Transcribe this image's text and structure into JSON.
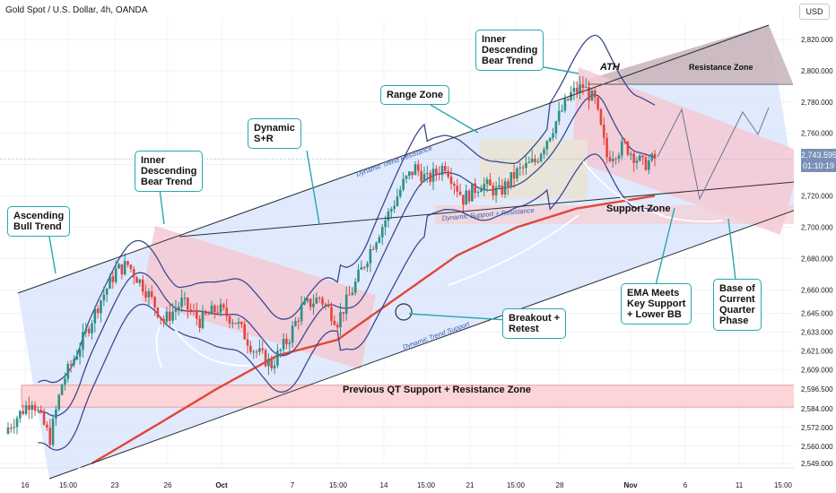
{
  "header": {
    "title": "Gold Spot / U.S. Dollar, 4h, OANDA",
    "currency": "USD"
  },
  "price_tag": {
    "value": "2,743.595",
    "countdown": "01:10:19"
  },
  "colors": {
    "candle_up": "#2d8f86",
    "candle_down": "#e8433f",
    "channel_fill": "#dbe6fb",
    "bear_fill": "#f4c9d4",
    "ema": "#e0473a",
    "bollinger": "#3d4a8f",
    "callout_border": "#27a7b0",
    "zone_fill": "#fbd5d7"
  },
  "annotations": {
    "ascending": "Ascending\nBull Trend",
    "inner_bear_1": "Inner\nDescending\nBear Trend",
    "dynamic_sr": "Dynamic\nS+R",
    "range_zone": "Range Zone",
    "inner_bear_2": "Inner\nDescending\nBear Trend",
    "ath": "ATH",
    "resistance_zone": "Resistance Zone",
    "support_zone": "Support Zone",
    "breakout": "Breakout +\nRetest",
    "ema_meets": "EMA Meets\nKey Support\n+ Lower BB",
    "base_quarter": "Base of\nCurrent\nQuarter\nPhase",
    "prev_qt": "Previous QT Support + Resistance Zone",
    "dyn_trend_res": "Dynamic Trend Resistance",
    "dyn_trend_sup": "Dynamic Trend Support",
    "dyn_sup_res": "Dynamic Support + Resistance"
  },
  "chart_data": {
    "type": "candlestick",
    "title": "Gold Spot / U.S. Dollar, 4h, OANDA",
    "ylim": [
      2544,
      2830
    ],
    "y_ticks": [
      "2,820.000",
      "2,800.000",
      "2,780.000",
      "2,760.000",
      "2,740.000",
      "2,720.000",
      "2,700.000",
      "2,680.000",
      "2,660.000",
      "2,645.000",
      "2,633.000",
      "2,621.000",
      "2,609.000",
      "2,596.500",
      "2,584.000",
      "2,572.000",
      "2,560.000",
      "2,549.000"
    ],
    "y_tick_values": [
      2820,
      2800,
      2780,
      2760,
      2740,
      2720,
      2700,
      2680,
      2660,
      2645,
      2633,
      2621,
      2609,
      2596.5,
      2584,
      2572,
      2560,
      2549
    ],
    "x_ticks": [
      "16",
      "15:00",
      "23",
      "26",
      "Oct",
      "7",
      "15:00",
      "14",
      "15:00",
      "21",
      "15:00",
      "28",
      "Nov",
      "6",
      "11",
      "15:00"
    ],
    "close_keypoints": [
      [
        0,
        2572
      ],
      [
        8,
        2590
      ],
      [
        14,
        2565
      ],
      [
        18,
        2600
      ],
      [
        24,
        2624
      ],
      [
        30,
        2650
      ],
      [
        36,
        2672
      ],
      [
        40,
        2676
      ],
      [
        46,
        2660
      ],
      [
        52,
        2640
      ],
      [
        58,
        2652
      ],
      [
        64,
        2640
      ],
      [
        70,
        2648
      ],
      [
        76,
        2640
      ],
      [
        82,
        2622
      ],
      [
        88,
        2612
      ],
      [
        94,
        2630
      ],
      [
        98,
        2648
      ],
      [
        104,
        2655
      ],
      [
        110,
        2640
      ],
      [
        116,
        2664
      ],
      [
        122,
        2690
      ],
      [
        128,
        2712
      ],
      [
        132,
        2728
      ],
      [
        136,
        2738
      ],
      [
        140,
        2730
      ],
      [
        146,
        2740
      ],
      [
        152,
        2718
      ],
      [
        158,
        2728
      ],
      [
        164,
        2722
      ],
      [
        170,
        2735
      ],
      [
        176,
        2742
      ],
      [
        182,
        2764
      ],
      [
        188,
        2785
      ],
      [
        192,
        2790
      ],
      [
        196,
        2780
      ],
      [
        200,
        2745
      ],
      [
        206,
        2752
      ],
      [
        212,
        2740
      ],
      [
        216,
        2743.6
      ]
    ],
    "ema_keypoints": [
      [
        28,
        2549
      ],
      [
        50,
        2574
      ],
      [
        70,
        2597
      ],
      [
        90,
        2618
      ],
      [
        110,
        2628
      ],
      [
        130,
        2655
      ],
      [
        150,
        2682
      ],
      [
        170,
        2700
      ],
      [
        190,
        2712
      ],
      [
        216,
        2720
      ]
    ],
    "last_price": 2743.595,
    "zones": [
      {
        "name": "Previous QT Support + Resistance Zone",
        "from": 2585,
        "to": 2599
      },
      {
        "name": "Range Zone",
        "from": 2718,
        "to": 2756
      },
      {
        "name": "Support Zone",
        "from": 2702,
        "to": 2714
      },
      {
        "name": "Resistance Zone",
        "from": 2790,
        "to": 2828
      }
    ]
  }
}
